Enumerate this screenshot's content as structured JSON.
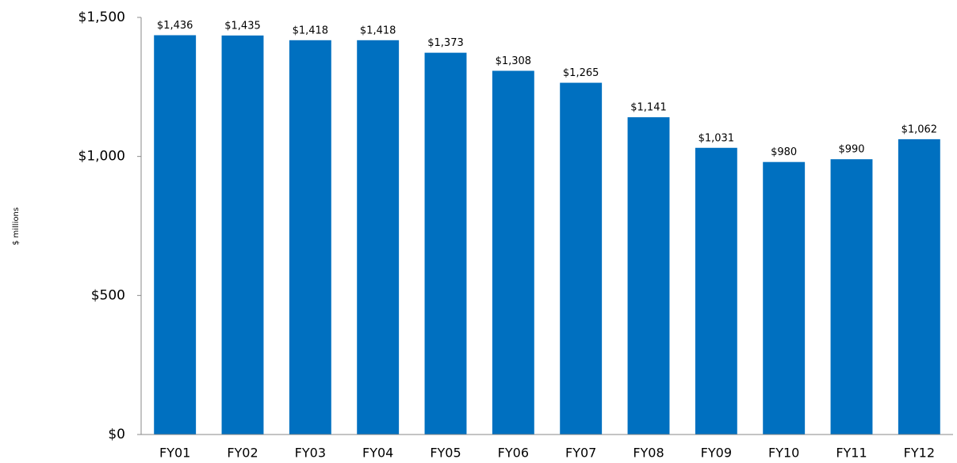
{
  "chart_data": {
    "type": "bar",
    "y_axis_label": "$ millions",
    "categories": [
      "FY01",
      "FY02",
      "FY03",
      "FY04",
      "FY05",
      "FY06",
      "FY07",
      "FY08",
      "FY09",
      "FY10",
      "FY11",
      "FY12"
    ],
    "values": [
      1436,
      1435,
      1418,
      1418,
      1373,
      1308,
      1265,
      1141,
      1031,
      980,
      990,
      1062
    ],
    "value_labels": [
      "$1,436",
      "$1,435",
      "$1,418",
      "$1,418",
      "$1,373",
      "$1,308",
      "$1,265",
      "$1,141",
      "$1,031",
      "$980",
      "$990",
      "$1,062"
    ],
    "color": "#0070c0",
    "ylim": [
      0,
      1500
    ],
    "yticks": [
      {
        "value": 0,
        "label": "$0"
      },
      {
        "value": 500,
        "label": "$500"
      },
      {
        "value": 1000,
        "label": "$1,000"
      },
      {
        "value": 1500,
        "label": "$1,500"
      }
    ],
    "grid": false
  }
}
